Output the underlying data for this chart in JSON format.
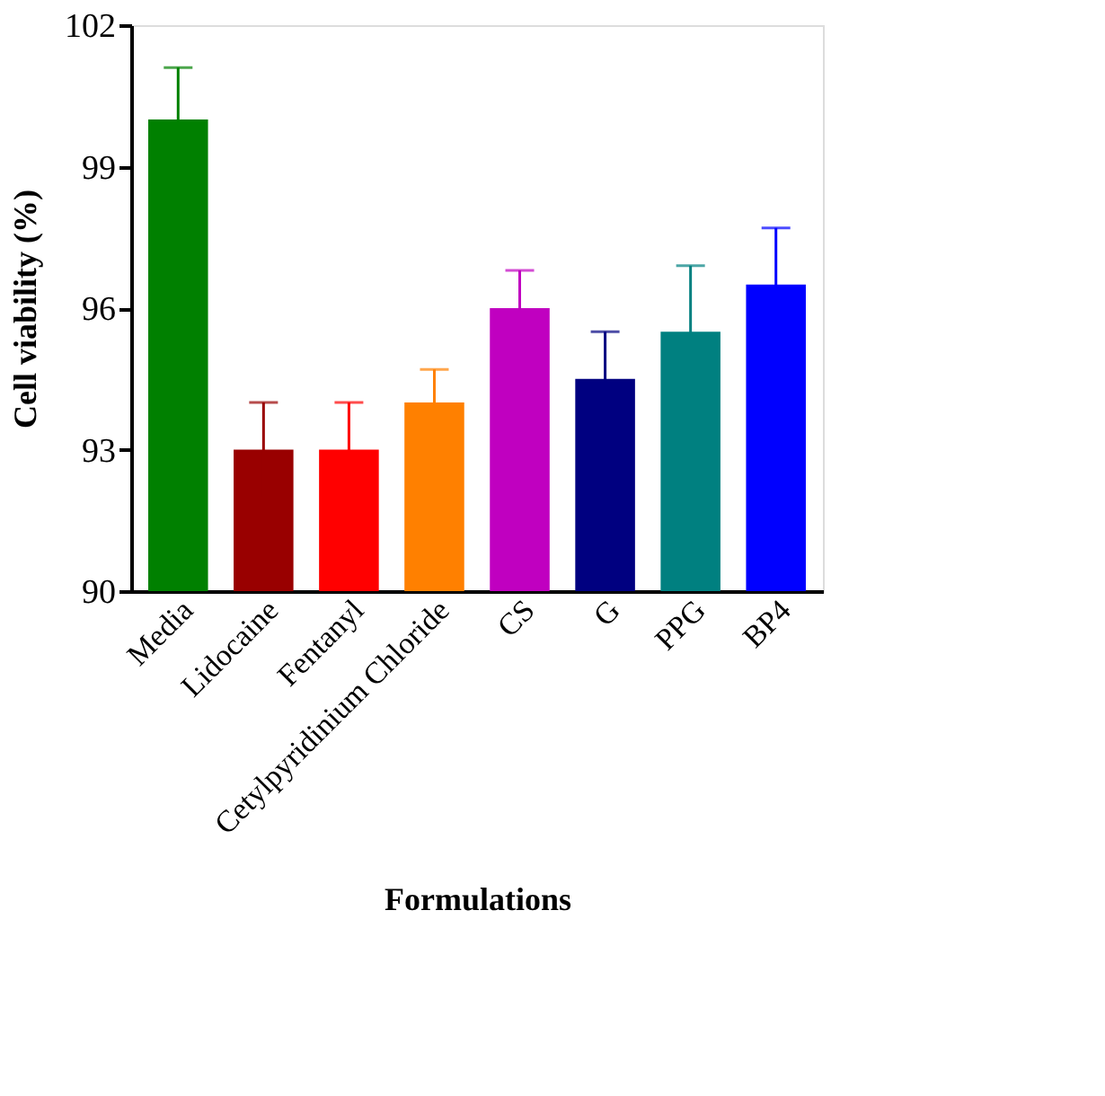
{
  "chart_data": {
    "type": "bar",
    "xlabel": "Formulations",
    "ylabel": "Cell viability (%)",
    "categories": [
      "Media",
      "Lidocaine",
      "Fentanyl",
      "Cetylpyridinium Chloride",
      "CS",
      "G",
      "PPG",
      "BP4"
    ],
    "values": [
      100,
      93,
      93,
      94,
      96,
      94.5,
      95.5,
      96.5
    ],
    "errors": [
      1.1,
      1,
      1,
      0.7,
      0.8,
      1,
      1.4,
      1.2
    ],
    "colors": [
      "#008000",
      "#990000",
      "#ff0000",
      "#ff8000",
      "#c000c0",
      "#000080",
      "#008080",
      "#0000ff"
    ],
    "ylim": [
      90,
      102
    ],
    "yticks": [
      90,
      93,
      96,
      99,
      102
    ],
    "grid": false,
    "legend": false
  }
}
